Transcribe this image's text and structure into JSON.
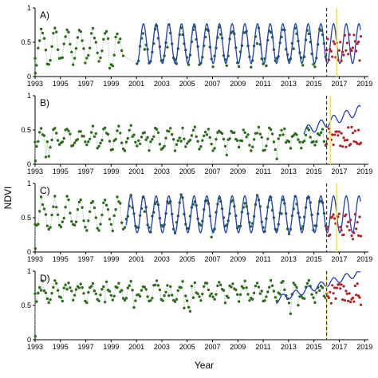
{
  "figure": {
    "xlabel": "Year",
    "ylabel": "NDVI",
    "colors": {
      "observed": "#2e6b1f",
      "observed_line": "#8fc08a",
      "forecast_points": "#b81f24",
      "model": "#1f3fc0",
      "dashed": "#333333",
      "yellow": "#f2e640",
      "axis": "#000000"
    }
  },
  "chart_data": [
    {
      "panel": "A)",
      "type": "scatter",
      "xlim": [
        1993,
        2019.3
      ],
      "ylim": [
        0,
        1
      ],
      "xticks": [
        "1993",
        "1995",
        "1997",
        "1999",
        "2001",
        "2003",
        "2005",
        "2007",
        "2009",
        "2011",
        "2013",
        "2015",
        "2017",
        "2019"
      ],
      "yticks": [
        "0",
        "0.5",
        "1"
      ],
      "obs_start": 1993.0,
      "obs_end": 2016.0,
      "obs_mean": 0.45,
      "obs_amp": 0.25,
      "obs_gaps": [
        [
          2000.0,
          2001.0
        ]
      ],
      "model_start": 2001.0,
      "model_end": 2018.7,
      "model_mean": 0.48,
      "model_amp": 0.29,
      "model_trend": 0.0,
      "forecast_start": 2016.0,
      "forecast_end": 2018.7,
      "forecast_low": 0.22,
      "forecast_high": 0.62,
      "dashed_x": 2016.0,
      "yellow_x": 2016.8
    },
    {
      "panel": "B)",
      "type": "scatter",
      "xlim": [
        1993,
        2019.3
      ],
      "ylim": [
        0,
        1
      ],
      "xticks": [
        "1993",
        "1995",
        "1997",
        "1999",
        "2001",
        "2003",
        "2005",
        "2007",
        "2009",
        "2011",
        "2013",
        "2015",
        "2017",
        "2019"
      ],
      "yticks": [
        "0",
        "0.5",
        "1"
      ],
      "obs_start": 1993.0,
      "obs_end": 2016.0,
      "obs_mean": 0.38,
      "obs_amp": 0.12,
      "obs_gaps": [],
      "model_start": 2014.2,
      "model_end": 2018.7,
      "model_mean": 0.48,
      "model_amp": 0.07,
      "model_trend": 0.07,
      "forecast_start": 2016.0,
      "forecast_end": 2018.7,
      "forecast_low": 0.25,
      "forecast_high": 0.55,
      "dashed_x": 2016.0,
      "yellow_x": 2016.3
    },
    {
      "panel": "C)",
      "type": "scatter",
      "xlim": [
        1993,
        2019.3
      ],
      "ylim": [
        0,
        1
      ],
      "xticks": [
        "1993",
        "1995",
        "1997",
        "1999",
        "2001",
        "2003",
        "2005",
        "2007",
        "2009",
        "2011",
        "2013",
        "2015",
        "2017",
        "2019"
      ],
      "yticks": [
        "0",
        "0.5",
        "1"
      ],
      "obs_start": 1993.0,
      "obs_end": 2016.0,
      "obs_mean": 0.55,
      "obs_amp": 0.22,
      "obs_gaps": [],
      "model_start": 2000.2,
      "model_end": 2018.7,
      "model_mean": 0.55,
      "model_amp": 0.27,
      "model_trend": 0.0,
      "forecast_start": 2016.0,
      "forecast_end": 2018.7,
      "forecast_low": 0.18,
      "forecast_high": 0.62,
      "dashed_x": 2016.0,
      "yellow_x": 2016.8
    },
    {
      "panel": "D)",
      "type": "scatter",
      "xlim": [
        1993,
        2019.3
      ],
      "ylim": [
        0,
        1
      ],
      "xticks": [
        "1993",
        "1995",
        "1997",
        "1999",
        "2001",
        "2003",
        "2005",
        "2007",
        "2009",
        "2011",
        "2013",
        "2015",
        "2017",
        "2019"
      ],
      "yticks": [
        "0",
        "0.5",
        "1"
      ],
      "obs_start": 1993.0,
      "obs_end": 2016.0,
      "obs_mean": 0.7,
      "obs_amp": 0.1,
      "obs_gaps": [],
      "model_start": 2012.0,
      "model_end": 2018.7,
      "model_mean": 0.58,
      "model_amp": 0.05,
      "model_trend": 0.06,
      "forecast_start": 2016.0,
      "forecast_end": 2018.7,
      "forecast_low": 0.5,
      "forecast_high": 0.82,
      "dashed_x": 2016.0,
      "yellow_x": 2016.0
    }
  ]
}
